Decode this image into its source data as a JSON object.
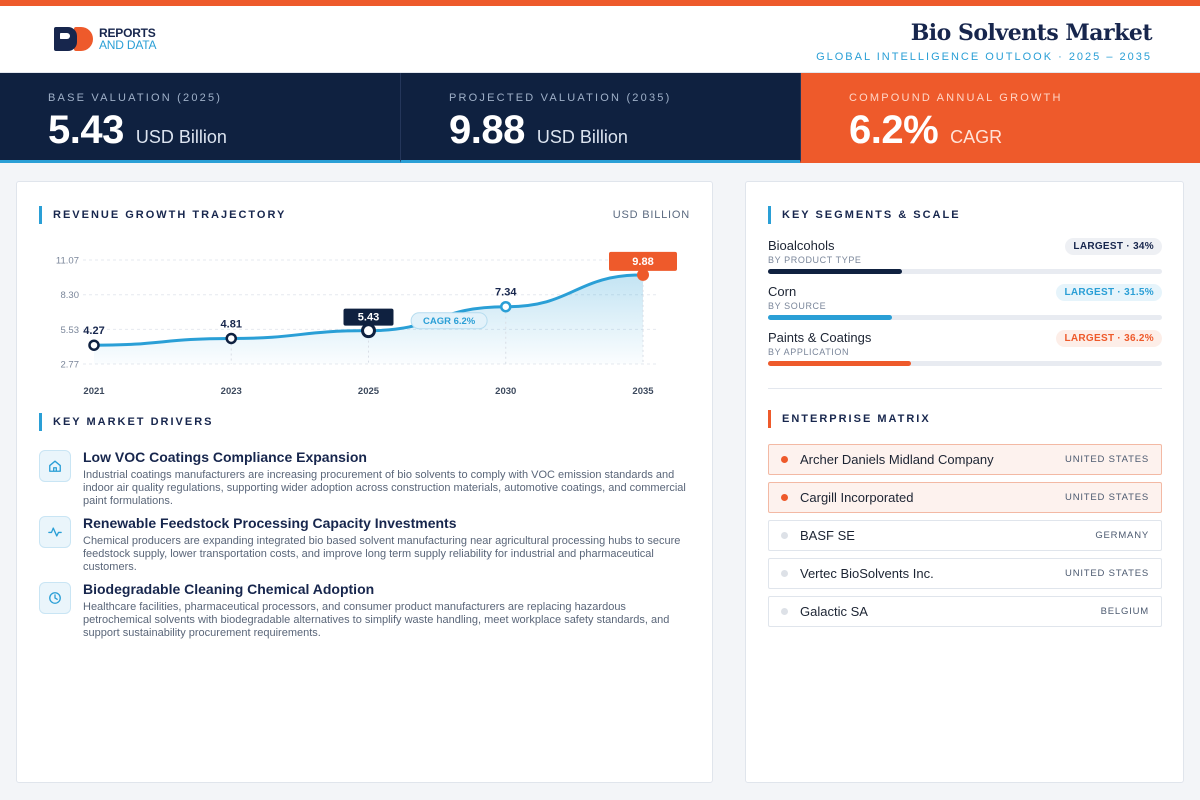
{
  "header": {
    "logo_line1": "REPORTS",
    "logo_line2": "AND DATA",
    "title": "Bio Solvents Market",
    "subtitle": "GLOBAL INTELLIGENCE OUTLOOK  ·  2025 – 2035"
  },
  "kpis": [
    {
      "label": "BASE VALUATION (2025)",
      "value": "5.43",
      "unit": "USD Billion"
    },
    {
      "label": "PROJECTED VALUATION (2035)",
      "value": "9.88",
      "unit": "USD Billion"
    },
    {
      "label": "COMPOUND ANNUAL GROWTH",
      "value": "6.2%",
      "unit": "CAGR"
    }
  ],
  "trajectory": {
    "heading": "REVENUE GROWTH TRAJECTORY",
    "units": "USD BILLION",
    "cagr_tag": "CAGR 6.2%"
  },
  "chart_data": {
    "type": "line",
    "title": "REVENUE GROWTH TRAJECTORY",
    "ylabel": "USD BILLION",
    "x": [
      "2021",
      "2023",
      "2025",
      "2030",
      "2035"
    ],
    "values": [
      4.27,
      4.81,
      5.43,
      7.34,
      9.88
    ],
    "value_labels": [
      "4.27",
      "4.81",
      "5.43",
      "7.34",
      "9.88"
    ],
    "y_ticks": [
      "11.07",
      "8.30",
      "5.53",
      "2.77"
    ],
    "ylim": [
      2.77,
      11.07
    ],
    "grid": true,
    "annotation": "CAGR 6.2%",
    "colors": {
      "line": "#2a9fd6",
      "highlight": "#ee5a2b",
      "dark": "#0f2140"
    }
  },
  "drivers": {
    "heading": "KEY MARKET DRIVERS",
    "items": [
      {
        "icon": "home-icon",
        "title": "Low VOC Coatings Compliance Expansion",
        "desc": "Industrial coatings manufacturers are increasing procurement of bio solvents to comply with VOC emission standards and indoor air quality regulations, supporting wider adoption across construction materials, automotive coatings, and commercial paint formulations."
      },
      {
        "icon": "activity-icon",
        "title": "Renewable Feedstock Processing Capacity Investments",
        "desc": "Chemical producers are expanding integrated bio based solvent manufacturing near agricultural processing hubs to secure feedstock supply, lower transportation costs, and improve long term supply reliability for industrial and pharmaceutical customers."
      },
      {
        "icon": "clock-icon",
        "title": "Biodegradable Cleaning Chemical Adoption",
        "desc": "Healthcare facilities, pharmaceutical processors, and consumer product manufacturers are replacing hazardous petrochemical solvents with biodegradable alternatives to simplify waste handling, meet workplace safety standards, and support sustainability procurement requirements."
      }
    ]
  },
  "segments": {
    "heading": "KEY SEGMENTS & SCALE",
    "items": [
      {
        "name": "Bioalcohols",
        "sub": "BY PRODUCT TYPE",
        "badge": "LARGEST · 34%",
        "share": 0.34,
        "color": "#0f2140"
      },
      {
        "name": "Corn",
        "sub": "BY SOURCE",
        "badge": "LARGEST · 31.5%",
        "share": 0.315,
        "color": "#2a9fd6"
      },
      {
        "name": "Paints & Coatings",
        "sub": "BY APPLICATION",
        "badge": "LARGEST · 36.2%",
        "share": 0.362,
        "color": "#ee5a2b"
      }
    ]
  },
  "matrix": {
    "heading": "ENTERPRISE MATRIX",
    "rows": [
      {
        "name": "Archer Daniels Midland Company",
        "country": "UNITED STATES",
        "highlight": true
      },
      {
        "name": "Cargill Incorporated",
        "country": "UNITED STATES",
        "highlight": true
      },
      {
        "name": "BASF SE",
        "country": "GERMANY",
        "highlight": false
      },
      {
        "name": "Vertec BioSolvents Inc.",
        "country": "UNITED STATES",
        "highlight": false
      },
      {
        "name": "Galactic SA",
        "country": "BELGIUM",
        "highlight": false
      }
    ]
  }
}
